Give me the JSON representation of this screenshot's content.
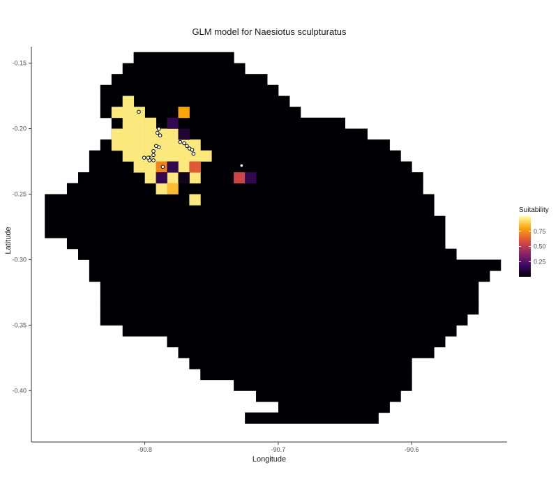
{
  "chart_data": {
    "type": "heatmap",
    "title": "GLM model for Naesiotus sculpturatus",
    "xlabel": "Longitude",
    "ylabel": "Latitude",
    "xlim": [
      -90.885,
      -90.5285
    ],
    "ylim": [
      -0.4392,
      -0.1375
    ],
    "x_ticks": [
      -90.8,
      -90.7,
      -90.6
    ],
    "x_tick_labels": [
      "-90.8",
      "-90.7",
      "-90.6"
    ],
    "y_ticks": [
      -0.15,
      -0.2,
      -0.25,
      -0.3,
      -0.35,
      -0.4
    ],
    "y_tick_labels": [
      "-0.15",
      "-0.20",
      "-0.25",
      "-0.30",
      "-0.35",
      "-0.40"
    ],
    "grid": false,
    "legend": {
      "title": "Suitability",
      "placement": "right",
      "breaks": [
        0.25,
        0.5,
        0.75
      ],
      "break_labels": [
        "0.25",
        "0.50",
        "0.75"
      ],
      "range": [
        0,
        1
      ]
    },
    "colors": {
      "background_cell": "#000004",
      "point_fill": "#ffffff",
      "point_stroke": "#000000",
      "scale": [
        "#000004",
        "#420a68",
        "#932667",
        "#dd513a",
        "#fca50a",
        "#fcffa4"
      ]
    },
    "cell_size_deg": [
      0.00833,
      0.00833
    ],
    "land_extent": [
      [
        -0.1458,
        -90.8042,
        -90.7375
      ],
      [
        -0.1542,
        -90.8125,
        -90.7292
      ],
      [
        -0.1625,
        -90.8208,
        -90.7125
      ],
      [
        -0.1708,
        -90.8292,
        -90.7042
      ],
      [
        -0.1792,
        -90.8292,
        -90.6958
      ],
      [
        -0.1875,
        -90.8292,
        -90.6875
      ],
      [
        -0.1958,
        -90.8208,
        -90.6542
      ],
      [
        -0.2042,
        -90.8208,
        -90.6375
      ],
      [
        -0.2125,
        -90.8292,
        -90.6208
      ],
      [
        -0.2208,
        -90.8375,
        -90.6125
      ],
      [
        -0.2292,
        -90.8375,
        -90.6042
      ],
      [
        -0.2375,
        -90.8458,
        -90.5958
      ],
      [
        -0.2458,
        -90.8542,
        -90.5958
      ],
      [
        -0.2542,
        -90.8708,
        -90.5875
      ],
      [
        -0.2625,
        -90.8708,
        -90.5875
      ],
      [
        -0.2708,
        -90.8708,
        -90.5792
      ],
      [
        -0.2792,
        -90.8708,
        -90.5792
      ],
      [
        -0.2875,
        -90.8542,
        -90.5792
      ],
      [
        -0.2958,
        -90.8458,
        -90.5708
      ],
      [
        -0.3042,
        -90.8375,
        -90.5375
      ],
      [
        -0.3125,
        -90.8375,
        -90.5458
      ],
      [
        -0.3208,
        -90.8292,
        -90.5542
      ],
      [
        -0.3292,
        -90.8292,
        -90.5542
      ],
      [
        -0.3375,
        -90.8292,
        -90.5542
      ],
      [
        -0.3458,
        -90.8292,
        -90.5625
      ],
      [
        -0.3542,
        -90.8125,
        -90.5708
      ],
      [
        -0.3625,
        -90.7792,
        -90.5792
      ],
      [
        -0.3708,
        -90.7708,
        -90.5875
      ],
      [
        -0.3792,
        -90.7625,
        -90.6042
      ],
      [
        -0.3875,
        -90.7542,
        -90.6042
      ],
      [
        -0.3958,
        -90.7292,
        -90.6042
      ],
      [
        -0.4042,
        -90.7125,
        -90.6125
      ],
      [
        -0.4125,
        -90.6958,
        -90.6208
      ],
      [
        -0.4208,
        -90.7208,
        -90.6292
      ]
    ],
    "suitability_cells": [
      [
        -90.8125,
        -0.1792,
        0.95
      ],
      [
        -90.8208,
        -0.1875,
        0.95
      ],
      [
        -90.8125,
        -0.1875,
        0.95
      ],
      [
        -90.8042,
        -0.1875,
        0.95
      ],
      [
        -90.8125,
        -0.1958,
        0.95
      ],
      [
        -90.8042,
        -0.1958,
        0.95
      ],
      [
        -90.7958,
        -0.1958,
        0.95
      ],
      [
        -90.8208,
        -0.2042,
        0.95
      ],
      [
        -90.8125,
        -0.2042,
        0.95
      ],
      [
        -90.8042,
        -0.2042,
        0.95
      ],
      [
        -90.7958,
        -0.2042,
        0.95
      ],
      [
        -90.7875,
        -0.2042,
        0.95
      ],
      [
        -90.7792,
        -0.2042,
        0.95
      ],
      [
        -90.8208,
        -0.2125,
        0.95
      ],
      [
        -90.8125,
        -0.2125,
        0.95
      ],
      [
        -90.8042,
        -0.2125,
        0.95
      ],
      [
        -90.7958,
        -0.2125,
        0.95
      ],
      [
        -90.7875,
        -0.2125,
        0.95
      ],
      [
        -90.7792,
        -0.2125,
        0.95
      ],
      [
        -90.7708,
        -0.2125,
        0.95
      ],
      [
        -90.7625,
        -0.2125,
        0.95
      ],
      [
        -90.8125,
        -0.2208,
        0.95
      ],
      [
        -90.8042,
        -0.2208,
        0.95
      ],
      [
        -90.7958,
        -0.2208,
        0.95
      ],
      [
        -90.7875,
        -0.2208,
        0.95
      ],
      [
        -90.7792,
        -0.2208,
        0.95
      ],
      [
        -90.7708,
        -0.2208,
        0.95
      ],
      [
        -90.7625,
        -0.2208,
        0.95
      ],
      [
        -90.7542,
        -0.2208,
        0.95
      ],
      [
        -90.8042,
        -0.2292,
        0.95
      ],
      [
        -90.7958,
        -0.2292,
        0.95
      ],
      [
        -90.7875,
        -0.2292,
        0.95
      ],
      [
        -90.7792,
        -0.2292,
        0.95
      ],
      [
        -90.7708,
        -0.2292,
        0.95
      ],
      [
        -90.7625,
        -0.2292,
        0.95
      ],
      [
        -90.7958,
        -0.2375,
        0.95
      ],
      [
        -90.7792,
        -0.2375,
        0.95
      ],
      [
        -90.7625,
        -0.2375,
        0.95
      ],
      [
        -90.7875,
        -0.2458,
        0.95
      ],
      [
        -90.7625,
        -0.2542,
        0.95
      ],
      [
        -90.7708,
        -0.1875,
        0.8
      ],
      [
        -90.7792,
        -0.1958,
        0.15
      ],
      [
        -90.7708,
        -0.2042,
        0.1
      ],
      [
        -90.7875,
        -0.2292,
        0.72
      ],
      [
        -90.7792,
        -0.2292,
        0.15
      ],
      [
        -90.7625,
        -0.2292,
        0.62
      ],
      [
        -90.7875,
        -0.2375,
        0.15
      ],
      [
        -90.7708,
        -0.2375,
        0.05
      ],
      [
        -90.7792,
        -0.2458,
        0.85
      ],
      [
        -90.7292,
        -0.2375,
        0.55
      ],
      [
        -90.7208,
        -0.2375,
        0.15
      ]
    ],
    "occurrence_points": [
      [
        -90.8045,
        -0.1872
      ],
      [
        -90.7895,
        -0.2002
      ],
      [
        -90.7905,
        -0.2032
      ],
      [
        -90.7885,
        -0.2052
      ],
      [
        -90.7915,
        -0.2132
      ],
      [
        -90.7895,
        -0.2142
      ],
      [
        -90.7935,
        -0.2172
      ],
      [
        -90.7935,
        -0.2202
      ],
      [
        -90.7965,
        -0.2222
      ],
      [
        -90.8005,
        -0.2222
      ],
      [
        -90.7965,
        -0.2242
      ],
      [
        -90.7865,
        -0.2292
      ],
      [
        -90.7735,
        -0.2102
      ],
      [
        -90.7705,
        -0.2112
      ],
      [
        -90.7685,
        -0.2132
      ],
      [
        -90.7665,
        -0.2152
      ],
      [
        -90.7645,
        -0.2162
      ],
      [
        -90.7635,
        -0.2192
      ],
      [
        -90.7975,
        -0.2222
      ],
      [
        -90.7935,
        -0.2242
      ],
      [
        -90.7275,
        -0.2282
      ]
    ]
  }
}
